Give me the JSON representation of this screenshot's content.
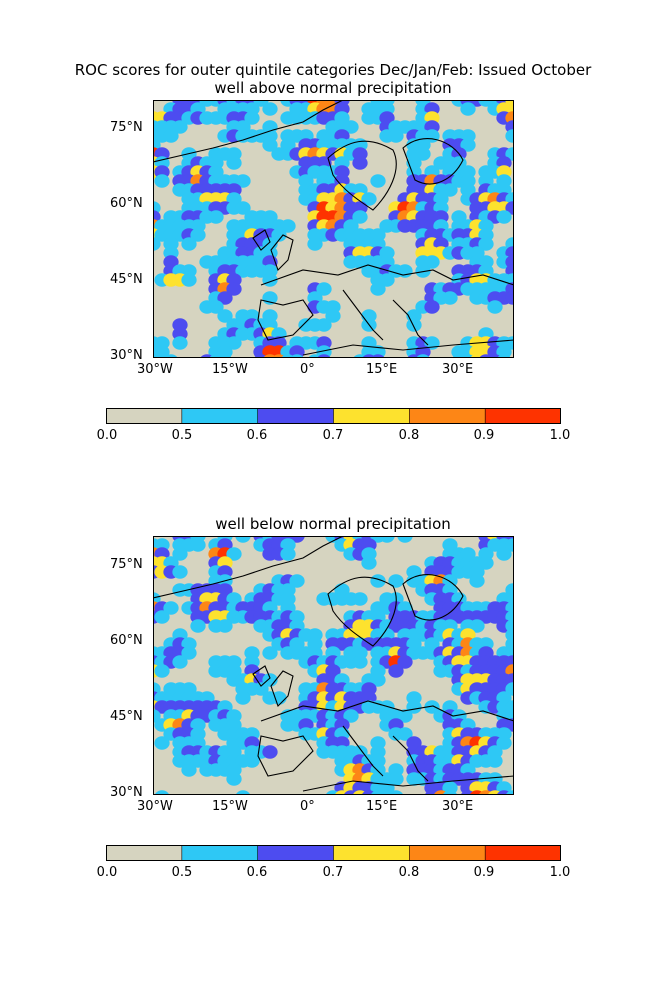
{
  "figure": {
    "title": "ROC scores for outer quintile categories Dec/Jan/Feb: Issued October"
  },
  "panels": [
    {
      "subtitle": "well above normal precipitation",
      "lat_labels": [
        "75°N",
        "60°N",
        "45°N",
        "30°N"
      ],
      "lon_labels": [
        "30°W",
        "15°W",
        "0°",
        "15°E",
        "30°E"
      ]
    },
    {
      "subtitle": "well below normal precipitation",
      "lat_labels": [
        "75°N",
        "60°N",
        "45°N",
        "30°N"
      ],
      "lon_labels": [
        "30°W",
        "15°W",
        "0°",
        "15°E",
        "30°E"
      ]
    }
  ],
  "colorbar": {
    "bounds": [
      "0.0",
      "0.5",
      "0.6",
      "0.7",
      "0.8",
      "0.9",
      "1.0"
    ],
    "colors": [
      "#d6d4c0",
      "#2ec8f5",
      "#4d4cf0",
      "#fde22e",
      "#fd8616",
      "#fe3300"
    ]
  },
  "map_extent": {
    "lon": [
      -30,
      41
    ],
    "lat": [
      30,
      81
    ]
  }
}
